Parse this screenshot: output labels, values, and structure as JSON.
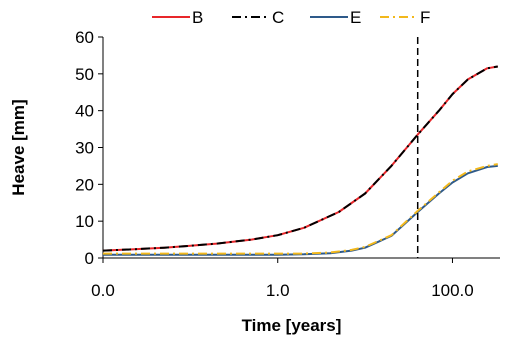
{
  "chart_data": {
    "type": "line",
    "title": "",
    "xlabel": "Time [years]",
    "ylabel": "Heave [mm]",
    "x_scale": "log",
    "xlim": [
      0.01,
      350
    ],
    "ylim": [
      0,
      60
    ],
    "x_ticks": [
      {
        "value": 0.01,
        "label": "0.0"
      },
      {
        "value": 1,
        "label": "1.0"
      },
      {
        "value": 100,
        "label": "100.0"
      }
    ],
    "y_ticks": [
      {
        "value": 0,
        "label": "0"
      },
      {
        "value": 10,
        "label": "10"
      },
      {
        "value": 20,
        "label": "20"
      },
      {
        "value": 30,
        "label": "30"
      },
      {
        "value": 40,
        "label": "40"
      },
      {
        "value": 50,
        "label": "50"
      },
      {
        "value": 60,
        "label": "60"
      }
    ],
    "grid": false,
    "legend_position": "top",
    "vertical_line": {
      "x": 40,
      "style": "dashed",
      "color": "#000000"
    },
    "series": [
      {
        "name": "B",
        "color": "#e8262a",
        "dash": "solid",
        "x": [
          0.01,
          0.02,
          0.05,
          0.1,
          0.2,
          0.5,
          1,
          2,
          5,
          10,
          20,
          40,
          70,
          100,
          150,
          250,
          330
        ],
        "y": [
          2.0,
          2.3,
          2.8,
          3.3,
          3.9,
          5.0,
          6.2,
          8.2,
          12.5,
          17.5,
          25.0,
          33.5,
          40.0,
          44.5,
          48.5,
          51.5,
          52.0
        ]
      },
      {
        "name": "C",
        "color": "#000000",
        "dash": "dashdot",
        "x": [
          0.01,
          0.02,
          0.05,
          0.1,
          0.2,
          0.5,
          1,
          2,
          5,
          10,
          20,
          40,
          70,
          100,
          150,
          250,
          330
        ],
        "y": [
          2.0,
          2.3,
          2.8,
          3.3,
          3.9,
          5.0,
          6.2,
          8.2,
          12.5,
          17.5,
          25.0,
          33.5,
          40.0,
          44.5,
          48.5,
          51.5,
          52.0
        ]
      },
      {
        "name": "E",
        "color": "#2e5a8a",
        "dash": "solid",
        "x": [
          0.01,
          0.05,
          0.1,
          0.5,
          1,
          2,
          4,
          7,
          10,
          20,
          40,
          70,
          100,
          150,
          250,
          330
        ],
        "y": [
          0.9,
          0.9,
          0.9,
          0.9,
          0.9,
          1.0,
          1.3,
          2.0,
          2.8,
          6.0,
          12.5,
          17.5,
          20.5,
          23.0,
          24.7,
          25.0
        ]
      },
      {
        "name": "F",
        "color": "#f2b81c",
        "dash": "dashdot",
        "x": [
          0.01,
          0.05,
          0.1,
          0.5,
          1,
          2,
          4,
          7,
          10,
          20,
          40,
          70,
          100,
          150,
          250,
          330
        ],
        "y": [
          1.2,
          1.2,
          1.2,
          1.2,
          1.2,
          1.2,
          1.5,
          2.2,
          3.0,
          6.2,
          12.8,
          17.8,
          21.0,
          23.5,
          25.0,
          25.5
        ]
      }
    ]
  }
}
